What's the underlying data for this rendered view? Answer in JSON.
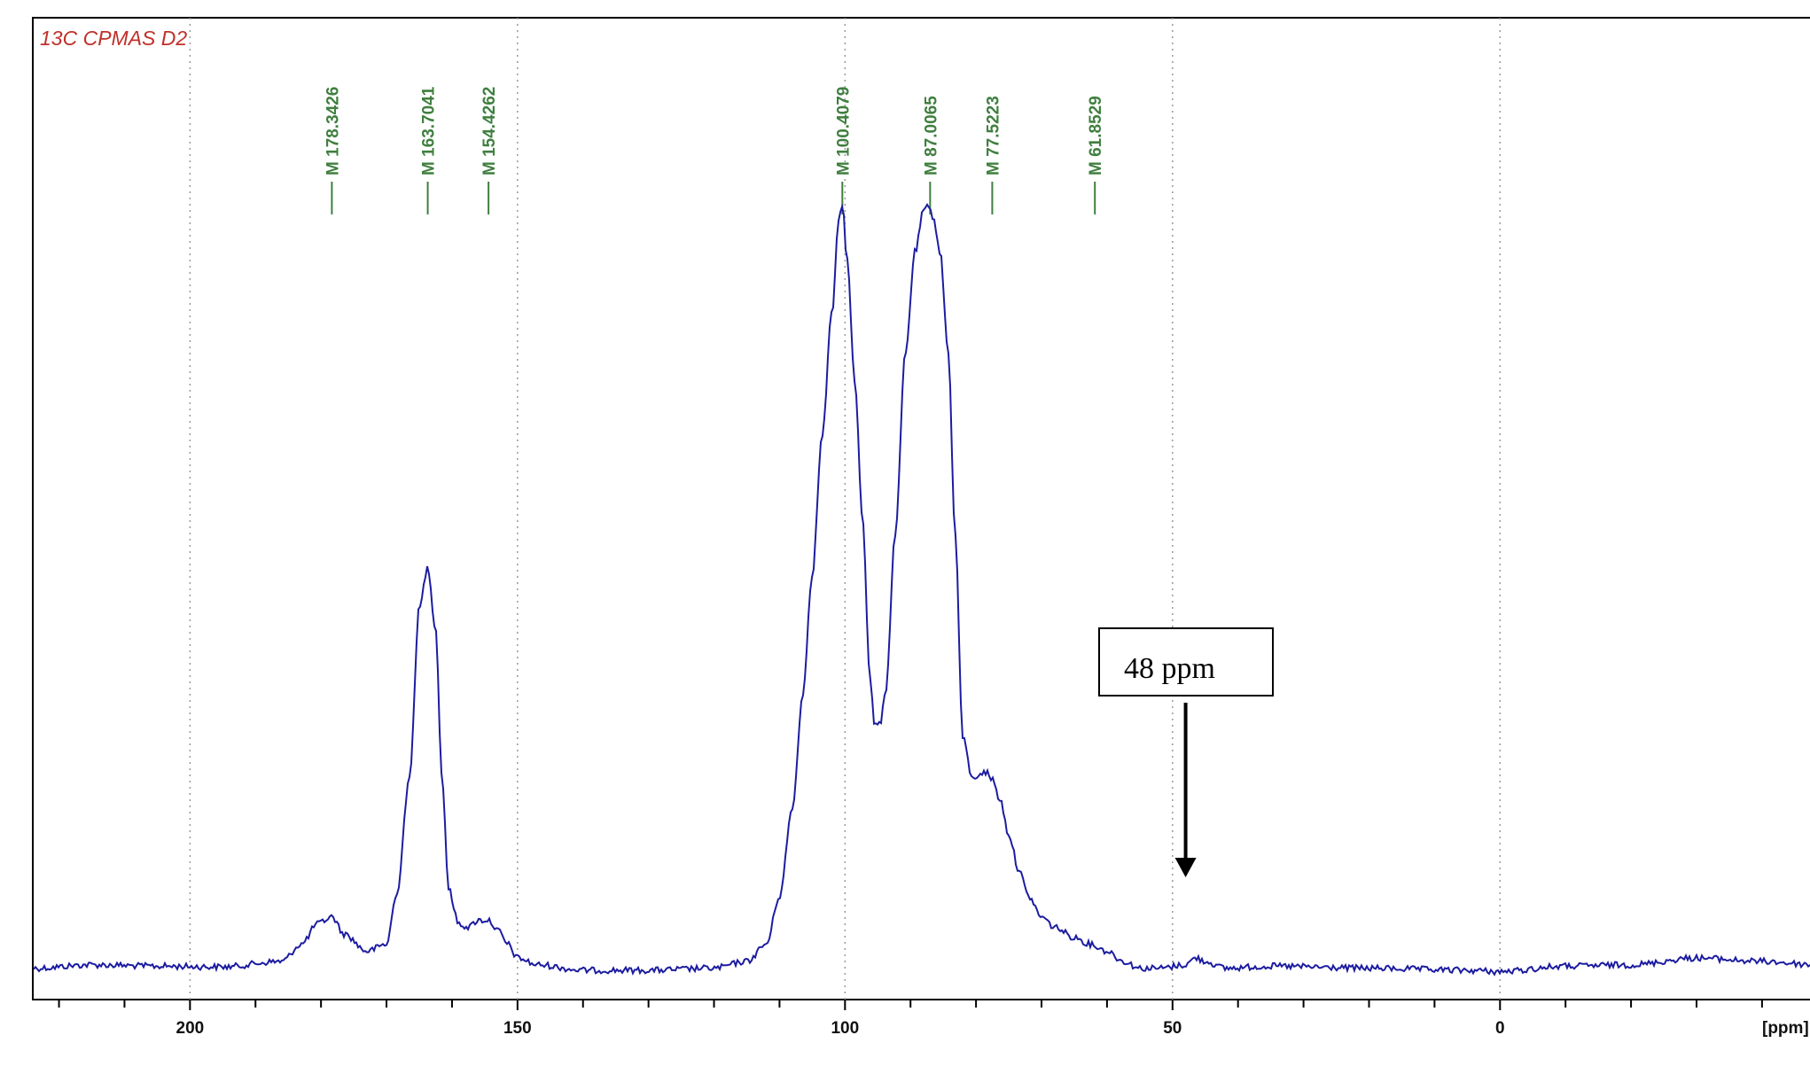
{
  "chart_data": {
    "type": "line",
    "title": "13C CPMAS D2",
    "xlabel": "[ppm]",
    "xlim": [
      224,
      -48
    ],
    "x_reversed": true,
    "ylim": [
      0,
      1.15
    ],
    "grid": "vertical dotted",
    "x_ticks": [
      "200",
      "150",
      "100",
      "50",
      "0"
    ],
    "colors": {
      "spectrum": "#1c1ca0",
      "peak_labels": "#3f7f3f",
      "title": "#c0302a",
      "axis": "#000000"
    },
    "series": [
      {
        "x": [
          224,
          215,
          205,
          195,
          186,
          183,
          180.5,
          178.3,
          176.5,
          173,
          170,
          168.5,
          166.5,
          165,
          163.7,
          162.5,
          161.5,
          160.5,
          159,
          157.5,
          156,
          154.4,
          153,
          151.5,
          150,
          147,
          140,
          130,
          120,
          115,
          112,
          110,
          108,
          106.5,
          105,
          103.5,
          102,
          100.9,
          100.4,
          99.7,
          98.5,
          97.3,
          96.2,
          95.5,
          94.7,
          93.8,
          92.3,
          90.8,
          89.3,
          88,
          87.5,
          87,
          86.5,
          85.5,
          84.2,
          83.2,
          82,
          80.5,
          79.3,
          78.3,
          77.5,
          76.3,
          75,
          73.5,
          72,
          70,
          68,
          65,
          62.5,
          60,
          57.5,
          55,
          52,
          48,
          46.5,
          45,
          42,
          35,
          20,
          5,
          0,
          -10,
          -20,
          -30,
          -40,
          -48
        ],
        "y": [
          0.025,
          0.03,
          0.028,
          0.027,
          0.035,
          0.06,
          0.09,
          0.1,
          0.075,
          0.05,
          0.06,
          0.13,
          0.3,
          0.55,
          0.61,
          0.52,
          0.3,
          0.14,
          0.09,
          0.085,
          0.095,
          0.095,
          0.08,
          0.06,
          0.04,
          0.03,
          0.022,
          0.022,
          0.025,
          0.035,
          0.06,
          0.13,
          0.26,
          0.42,
          0.6,
          0.8,
          0.98,
          1.12,
          1.14,
          1.06,
          0.88,
          0.68,
          0.45,
          0.38,
          0.38,
          0.43,
          0.66,
          0.92,
          1.07,
          1.13,
          1.135,
          1.13,
          1.12,
          1.07,
          0.92,
          0.66,
          0.36,
          0.3,
          0.31,
          0.31,
          0.3,
          0.27,
          0.22,
          0.17,
          0.13,
          0.1,
          0.085,
          0.07,
          0.06,
          0.05,
          0.035,
          0.025,
          0.025,
          0.03,
          0.04,
          0.035,
          0.025,
          0.028,
          0.025,
          0.022,
          0.02,
          0.028,
          0.03,
          0.04,
          0.035,
          0.03
        ]
      }
    ],
    "peak_labels": [
      {
        "x": 178.3426,
        "text": "M 178.3426"
      },
      {
        "x": 163.7041,
        "text": "M 163.7041"
      },
      {
        "x": 154.4262,
        "text": "M 154.4262"
      },
      {
        "x": 100.4079,
        "text": "M 100.4079"
      },
      {
        "x": 87.0065,
        "text": "M 87.0065"
      },
      {
        "x": 77.5223,
        "text": "M 77.5223"
      },
      {
        "x": 61.8529,
        "text": "M 61.8529"
      }
    ],
    "annotation": {
      "text": "48 ppm",
      "x": 48
    }
  }
}
